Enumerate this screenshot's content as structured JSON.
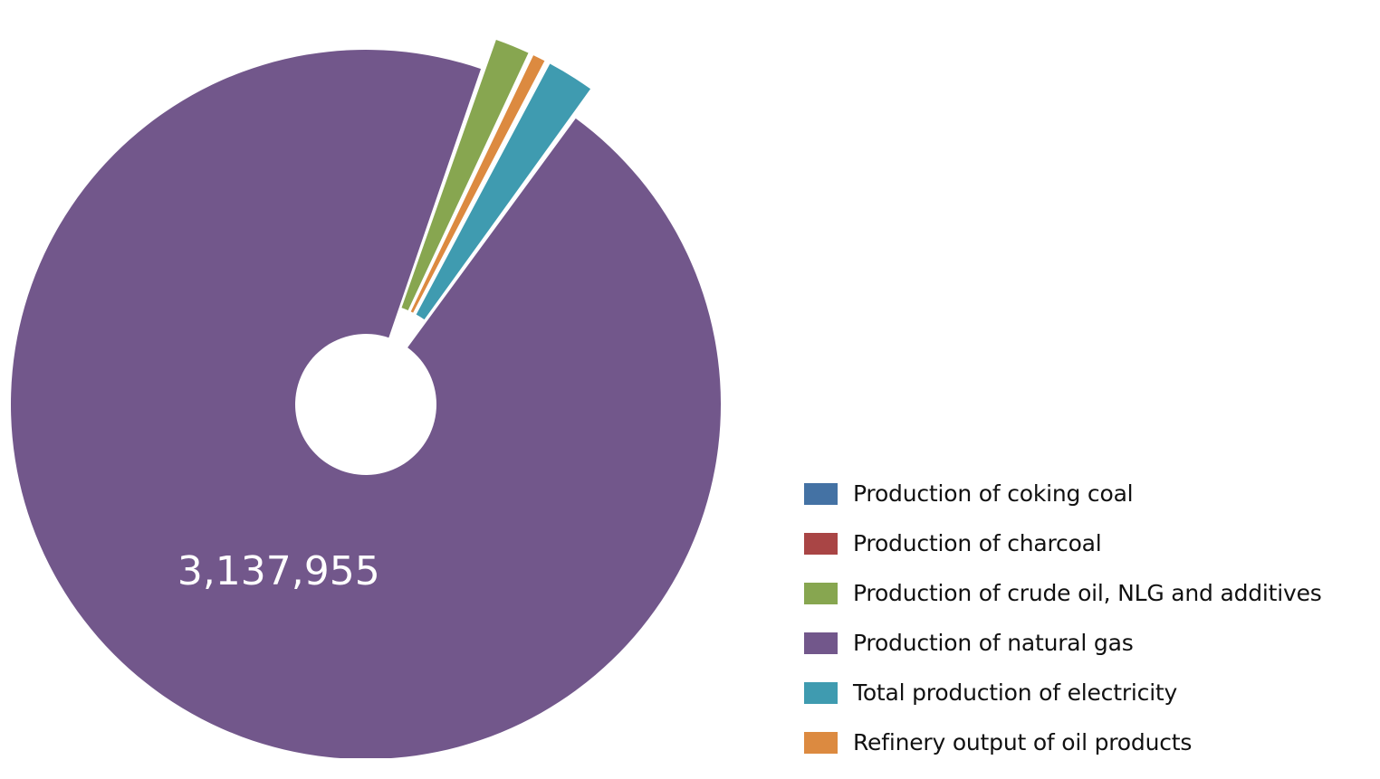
{
  "chart_data": {
    "type": "pie",
    "title": "",
    "subtitle": "",
    "legend_position": "right",
    "categories": [
      "Production of coking coal",
      "Production of charcoal",
      "Production of crude oil, NLG and additives",
      "Production of natural gas",
      "Total production of electricity",
      "Refinery output of oil products"
    ],
    "values": [
      0,
      0,
      56000,
      3137955,
      75000,
      23000
    ],
    "colors": [
      "#4472a4",
      "#a94545",
      "#87a650",
      "#72578b",
      "#3f9bb0",
      "#dc8a40"
    ],
    "exploded": [
      true,
      true,
      true,
      false,
      true,
      true
    ],
    "data_labels": [
      "",
      "",
      "",
      "3,137,955",
      "",
      ""
    ]
  }
}
